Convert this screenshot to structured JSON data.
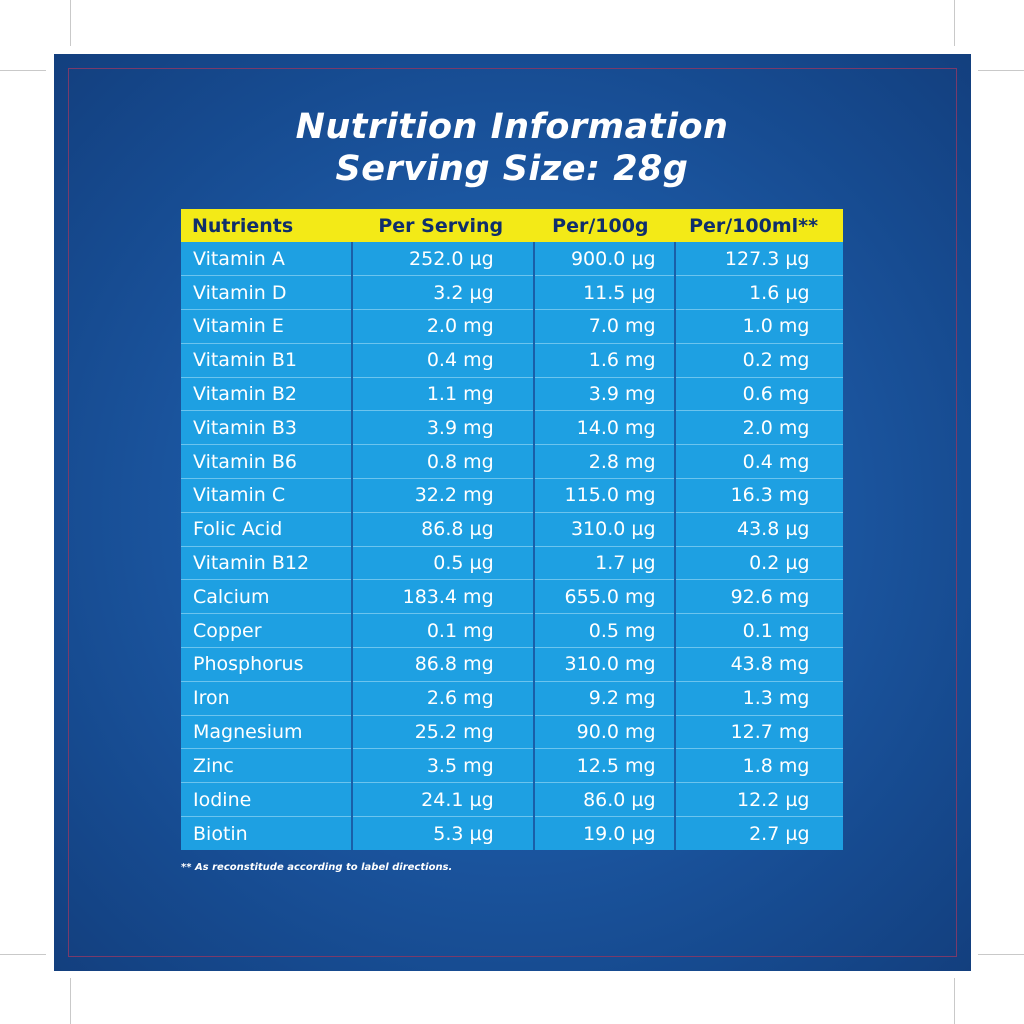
{
  "title": {
    "line1": "Nutrition Information",
    "line2": "Serving Size: 28g"
  },
  "table": {
    "headers": [
      "Nutrients",
      "Per Serving",
      "Per/100g",
      "Per/100ml**"
    ],
    "rows": [
      [
        "Vitamin A",
        "252.0 µg",
        "900.0 µg",
        "127.3 µg"
      ],
      [
        "Vitamin D",
        "3.2 µg",
        "11.5 µg",
        "1.6 µg"
      ],
      [
        "Vitamin E",
        "2.0 mg",
        "7.0 mg",
        "1.0 mg"
      ],
      [
        "Vitamin B1",
        "0.4 mg",
        "1.6 mg",
        "0.2 mg"
      ],
      [
        "Vitamin B2",
        "1.1 mg",
        "3.9 mg",
        "0.6 mg"
      ],
      [
        "Vitamin B3",
        "3.9 mg",
        "14.0 mg",
        "2.0 mg"
      ],
      [
        "Vitamin B6",
        "0.8 mg",
        "2.8 mg",
        "0.4 mg"
      ],
      [
        "Vitamin C",
        "32.2 mg",
        "115.0 mg",
        "16.3 mg"
      ],
      [
        "Folic Acid",
        "86.8 µg",
        "310.0 µg",
        "43.8 µg"
      ],
      [
        "Vitamin B12",
        "0.5 µg",
        "1.7 µg",
        "0.2 µg"
      ],
      [
        "Calcium",
        "183.4 mg",
        "655.0 mg",
        "92.6 mg"
      ],
      [
        "Copper",
        "0.1 mg",
        "0.5 mg",
        "0.1 mg"
      ],
      [
        "Phosphorus",
        "86.8 mg",
        "310.0 mg",
        "43.8 mg"
      ],
      [
        "Iron",
        "2.6 mg",
        "9.2 mg",
        "1.3 mg"
      ],
      [
        "Magnesium",
        "25.2 mg",
        "90.0 mg",
        "12.7 mg"
      ],
      [
        "Zinc",
        "3.5 mg",
        "12.5 mg",
        "1.8 mg"
      ],
      [
        "Iodine",
        "24.1 µg",
        "86.0 µg",
        "12.2 µg"
      ],
      [
        "Biotin",
        "5.3 µg",
        "19.0 µg",
        "2.7 µg"
      ]
    ]
  },
  "footnote": "** As reconstitude according to label directions.",
  "colors": {
    "panel": "#1d5aa6",
    "header_bg": "#f3ea17",
    "header_text": "#0f2e6b",
    "cell_bg": "#1ea0e2",
    "text": "#ffffff"
  }
}
